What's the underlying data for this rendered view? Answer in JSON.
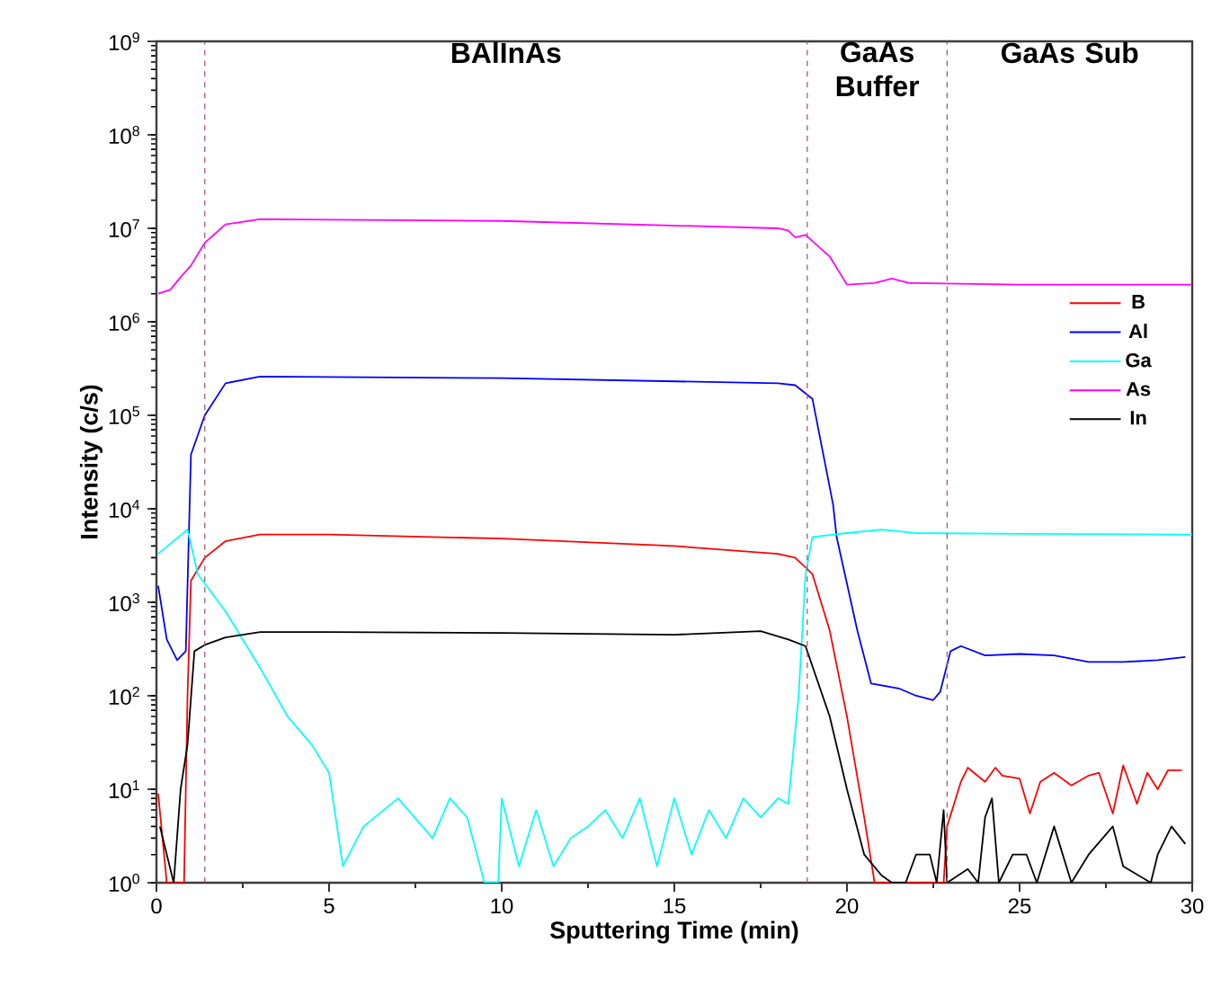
{
  "chart_data": {
    "type": "line",
    "xlabel": "Sputtering Time (min)",
    "ylabel": "Intensity (c/s)",
    "log": "y",
    "xlim": [
      0,
      30
    ],
    "xticks": [
      0,
      5,
      10,
      15,
      20,
      25,
      30
    ],
    "ylim": [
      1,
      1000000000
    ],
    "yticks": [
      {
        "value": 1,
        "label": "10$^{0}$"
      },
      {
        "value": 10,
        "label": "10$^{1}$"
      },
      {
        "value": 100,
        "label": "10$^{2}$"
      },
      {
        "value": 1000,
        "label": "10$^{3}$"
      },
      {
        "value": 10000,
        "label": "10$^{4}$"
      },
      {
        "value": 100000,
        "label": "10$^{5}$"
      },
      {
        "value": 1000000,
        "label": "10$^{6}$"
      },
      {
        "value": 10000000,
        "label": "10$^{7}$"
      },
      {
        "value": 100000000,
        "label": "10$^{8}$"
      },
      {
        "value": 1000000000,
        "label": "10$^{9}$"
      }
    ],
    "grid": false,
    "legend": "right",
    "marker": "none",
    "line_style": "solid",
    "series": [
      {
        "name": "B",
        "color": "#ff0000",
        "x": [
          0.05,
          0.3,
          0.5,
          0.8,
          0.9,
          1.0,
          1.4,
          2,
          3,
          5,
          10,
          15,
          18,
          18.5,
          19,
          19.5,
          20,
          20.5,
          20.8,
          22.8,
          22.9,
          23.3,
          23.5,
          24,
          24.3,
          24.5,
          25,
          25.3,
          25.6,
          26,
          26.5,
          27,
          27.3,
          27.7,
          28,
          28.4,
          28.7,
          29,
          29.3,
          29.7
        ],
        "values": [
          9,
          1,
          1,
          1,
          100,
          1700,
          3000,
          4500,
          5300,
          5300,
          4800,
          4000,
          3300,
          3000,
          2000,
          500,
          60,
          5,
          1,
          1,
          4,
          12,
          17,
          12,
          17,
          14,
          13,
          5.5,
          12,
          15,
          11,
          14,
          15,
          5.5,
          18,
          7,
          15,
          10,
          16,
          16
        ]
      },
      {
        "name": "Al",
        "color": "#0000ff",
        "x": [
          0.05,
          0.3,
          0.6,
          0.85,
          1.0,
          1.4,
          2,
          3,
          10,
          18,
          18.5,
          19,
          19.6,
          19.7,
          20.3,
          20.7,
          21.5,
          22,
          22.5,
          22.7,
          23.0,
          23.3,
          24,
          25,
          26,
          27,
          28,
          29,
          29.8
        ],
        "values": [
          1500,
          400,
          240,
          300,
          38000,
          100000,
          220000,
          260000,
          250000,
          220000,
          210000,
          150000,
          11000,
          5000,
          500,
          135,
          120,
          100,
          90,
          110,
          300,
          340,
          270,
          280,
          270,
          230,
          230,
          240,
          260
        ]
      },
      {
        "name": "Ga",
        "color": "#00ffff",
        "x": [
          0.05,
          0.9,
          1.2,
          2,
          3,
          3.8,
          4.5,
          5,
          5.4,
          6,
          7,
          8,
          8.5,
          9,
          9.5,
          9.9,
          10,
          10.5,
          11,
          11.5,
          12,
          12.5,
          13,
          13.5,
          14,
          14.5,
          15,
          15.5,
          16,
          16.5,
          17,
          17.5,
          18,
          18.3,
          18.6,
          18.8,
          19,
          20,
          21,
          22,
          25,
          30
        ],
        "values": [
          3300,
          6000,
          2000,
          800,
          200,
          60,
          30,
          15,
          1.5,
          4,
          8,
          3,
          8,
          5,
          1,
          1,
          8,
          1.5,
          6,
          1.5,
          3,
          4,
          6,
          3,
          8,
          1.5,
          8,
          2,
          6,
          3,
          8,
          5,
          8,
          7,
          100,
          2000,
          5000,
          5500,
          6000,
          5500,
          5400,
          5300
        ]
      },
      {
        "name": "As",
        "color": "#ff00ff",
        "x": [
          0.05,
          0.4,
          0.7,
          1.0,
          1.4,
          2,
          3,
          10,
          18,
          18.3,
          18.5,
          18.8,
          19.5,
          20,
          20.8,
          21.3,
          21.8,
          25,
          30
        ],
        "values": [
          2000000,
          2200000,
          3000000,
          4000000,
          7000000,
          11000000,
          12500000,
          12000000,
          10000000,
          9500000,
          8000000,
          8500000,
          5000000,
          2500000,
          2600000,
          2900000,
          2600000,
          2500000,
          2500000
        ]
      },
      {
        "name": "In",
        "color": "#000000",
        "x": [
          0.1,
          0.5,
          0.7,
          0.9,
          1.1,
          1.4,
          2,
          3,
          5,
          10,
          15,
          17.5,
          18.3,
          18.8,
          19.5,
          20,
          20.5,
          21,
          21.3,
          21.7,
          22,
          22.4,
          22.6,
          22.8,
          22.9,
          23.5,
          23.8,
          24.0,
          24.2,
          24.4,
          24.8,
          25.2,
          25.5,
          26,
          26.5,
          27,
          27.7,
          28,
          28.8,
          29,
          29.4,
          29.8
        ],
        "values": [
          4,
          1,
          10,
          30,
          300,
          350,
          420,
          480,
          480,
          470,
          450,
          490,
          400,
          340,
          60,
          10,
          2,
          1.2,
          1,
          1,
          2,
          2,
          1,
          6,
          1,
          1.4,
          1,
          5,
          8,
          1,
          2,
          2,
          1,
          4,
          1,
          2,
          4,
          1.5,
          1,
          2,
          4,
          2.6
        ]
      }
    ],
    "ref_lines": [
      {
        "axis": "x",
        "value": 1.4,
        "color": "#a05060",
        "line_style": "dashed"
      },
      {
        "axis": "x",
        "value": 18.85,
        "color": "#a05060",
        "line_style": "dashed"
      },
      {
        "axis": "x",
        "value": 22.9,
        "color": "#a05060",
        "line_style": "dashed"
      }
    ],
    "annotations": [
      "BAlInAs",
      "GaAs Buffer",
      "GaAs Sub"
    ]
  }
}
